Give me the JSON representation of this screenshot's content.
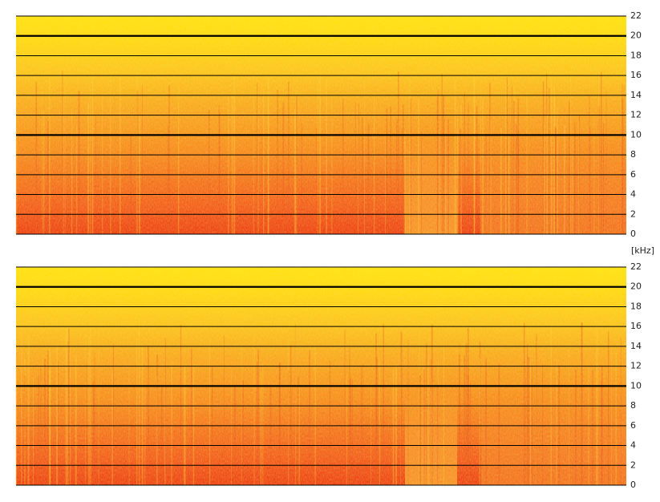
{
  "chart_data": [
    {
      "type": "spectrogram",
      "ylabel": "[kHz]",
      "ylim": [
        0,
        22
      ],
      "yticks": [
        0,
        2,
        4,
        6,
        8,
        10,
        12,
        14,
        16,
        18,
        20,
        22
      ],
      "bold_yticks": [
        10,
        20
      ]
    },
    {
      "type": "spectrogram",
      "ylim": [
        0,
        22
      ],
      "yticks": [
        0,
        2,
        4,
        6,
        8,
        10,
        12,
        14,
        16,
        18,
        20,
        22
      ],
      "bold_yticks": [
        10,
        20
      ]
    }
  ]
}
